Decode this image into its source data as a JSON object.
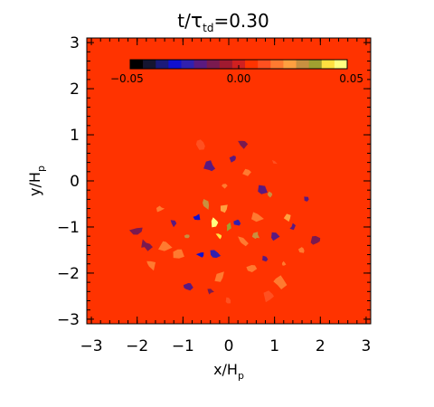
{
  "chart_data": {
    "type": "heatmap",
    "title": {
      "main": "t/",
      "symbol": "τ",
      "subscript": "td",
      "suffix": "=0.30"
    },
    "xlabel": {
      "main": "x/H",
      "subscript": "p"
    },
    "ylabel": {
      "main": "y/H",
      "subscript": "p"
    },
    "xlim": [
      -3.1,
      3.1
    ],
    "ylim": [
      -3.1,
      3.1
    ],
    "xticks": [
      -3,
      -2,
      -1,
      0,
      1,
      2,
      3
    ],
    "xtick_labels": [
      "−3",
      "−2",
      "−1",
      "0",
      "1",
      "2",
      "3"
    ],
    "yticks": [
      -3,
      -2,
      -1,
      0,
      1,
      2,
      3
    ],
    "ytick_labels": [
      "−3",
      "−2",
      "−1",
      "0",
      "1",
      "2",
      "3"
    ],
    "background_value": 0.0,
    "colorbar": {
      "range": [
        -0.05,
        0.05
      ],
      "ticks": [
        -0.05,
        0.0,
        0.05
      ],
      "tick_labels": [
        "−0.05",
        "0.00",
        "0.05"
      ],
      "colors": [
        "#000000",
        "#151530",
        "#1a1a7a",
        "#1010d0",
        "#3020b0",
        "#5a1a80",
        "#7a1a50",
        "#a01a30",
        "#d02020",
        "#ff3300",
        "#ff5020",
        "#ff7a30",
        "#ffa040",
        "#c89040",
        "#a0a030",
        "#ffe040",
        "#ffff80"
      ]
    },
    "patches": [
      {
        "x": -0.3,
        "y": -0.9,
        "value": 0.05
      },
      {
        "x": -0.2,
        "y": -1.2,
        "value": 0.04
      },
      {
        "x": -0.5,
        "y": -0.5,
        "value": 0.03
      },
      {
        "x": 0.6,
        "y": -0.8,
        "value": 0.02
      },
      {
        "x": 0.9,
        "y": -0.3,
        "value": 0.03
      },
      {
        "x": 1.3,
        "y": -0.8,
        "value": 0.025
      },
      {
        "x": -0.9,
        "y": -1.2,
        "value": 0.03
      },
      {
        "x": -1.4,
        "y": -1.4,
        "value": 0.02
      },
      {
        "x": 0.3,
        "y": -1.3,
        "value": 0.02
      },
      {
        "x": -0.1,
        "y": -0.1,
        "value": 0.015
      },
      {
        "x": 1.6,
        "y": -1.5,
        "value": 0.02
      },
      {
        "x": -0.2,
        "y": -2.1,
        "value": 0.015
      },
      {
        "x": 0.5,
        "y": -1.9,
        "value": 0.02
      },
      {
        "x": 1.1,
        "y": -2.2,
        "value": 0.015
      },
      {
        "x": -1.7,
        "y": -1.8,
        "value": 0.015
      },
      {
        "x": 0.4,
        "y": 0.2,
        "value": 0.02
      },
      {
        "x": -0.7,
        "y": -0.8,
        "value": -0.03
      },
      {
        "x": -0.6,
        "y": -1.6,
        "value": -0.03
      },
      {
        "x": 0.2,
        "y": -0.9,
        "value": -0.025
      },
      {
        "x": 0.7,
        "y": -0.2,
        "value": -0.02
      },
      {
        "x": 1.0,
        "y": -1.2,
        "value": -0.02
      },
      {
        "x": -0.4,
        "y": 0.3,
        "value": -0.02
      },
      {
        "x": 0.1,
        "y": 0.5,
        "value": -0.015
      },
      {
        "x": -1.2,
        "y": -0.9,
        "value": -0.015
      },
      {
        "x": 1.4,
        "y": -1.0,
        "value": -0.015
      },
      {
        "x": -2.0,
        "y": -1.1,
        "value": -0.01
      },
      {
        "x": 0.8,
        "y": -1.7,
        "value": -0.02
      },
      {
        "x": 1.7,
        "y": -0.4,
        "value": -0.015
      },
      {
        "x": -0.3,
        "y": -1.6,
        "value": -0.025
      },
      {
        "x": -0.9,
        "y": -2.3,
        "value": -0.015
      },
      {
        "x": 0.3,
        "y": 0.8,
        "value": -0.01
      },
      {
        "x": -0.6,
        "y": 0.8,
        "value": 0.01
      },
      {
        "x": -1.5,
        "y": -0.6,
        "value": 0.015
      },
      {
        "x": 1.0,
        "y": 0.4,
        "value": 0.01
      },
      {
        "x": -0.1,
        "y": -0.6,
        "value": 0.025
      },
      {
        "x": 0.6,
        "y": -1.2,
        "value": 0.03
      },
      {
        "x": 0.0,
        "y": -1.0,
        "value": 0.035
      },
      {
        "x": -1.1,
        "y": -1.6,
        "value": 0.02
      },
      {
        "x": 1.2,
        "y": -1.8,
        "value": 0.015
      },
      {
        "x": 0.0,
        "y": -2.6,
        "value": 0.01
      },
      {
        "x": 1.9,
        "y": -1.3,
        "value": -0.01
      },
      {
        "x": -1.8,
        "y": -1.4,
        "value": -0.01
      },
      {
        "x": 0.9,
        "y": -2.5,
        "value": 0.01
      },
      {
        "x": -0.4,
        "y": -2.4,
        "value": -0.01
      }
    ]
  }
}
